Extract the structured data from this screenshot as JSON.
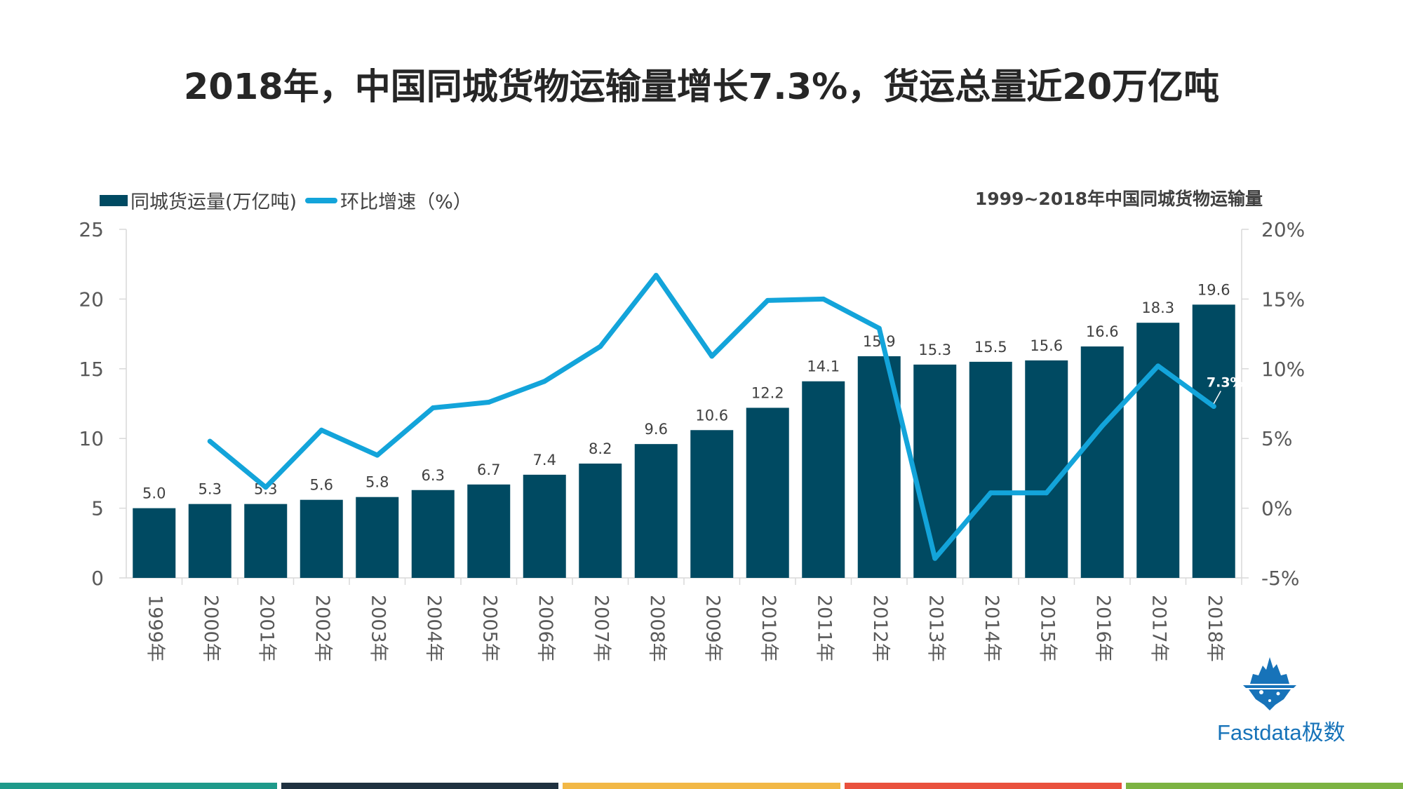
{
  "title": "2018年，中国同城货物运输量增长7.3%，货运总量近20万亿吨",
  "subtitle": "1999~2018年中国同城货物运输量",
  "logo_text": "Fastdata极数",
  "colors": {
    "bar": "#004A62",
    "line": "#13A4DA",
    "stripes": [
      "#1E9A8A",
      "#1F3140",
      "#F2B846",
      "#E9513D",
      "#7CB342"
    ]
  },
  "chart_data": {
    "type": "bar",
    "categories": [
      "1999年",
      "2000年",
      "2001年",
      "2002年",
      "2003年",
      "2004年",
      "2005年",
      "2006年",
      "2007年",
      "2008年",
      "2009年",
      "2010年",
      "2011年",
      "2012年",
      "2013年",
      "2014年",
      "2015年",
      "2016年",
      "2017年",
      "2018年"
    ],
    "series": [
      {
        "name": "同城货运量(万亿吨)",
        "type": "bar",
        "axis": "left",
        "values": [
          5.0,
          5.3,
          5.3,
          5.6,
          5.8,
          6.3,
          6.7,
          7.4,
          8.2,
          9.6,
          10.6,
          12.2,
          14.1,
          15.9,
          15.3,
          15.5,
          15.6,
          16.6,
          18.3,
          19.6
        ],
        "labels": [
          "5.0",
          "5.3",
          "5.3",
          "5.6",
          "5.8",
          "6.3",
          "6.7",
          "7.4",
          "8.2",
          "9.6",
          "10.6",
          "12.2",
          "14.1",
          "15.9",
          "15.3",
          "15.5",
          "15.6",
          "16.6",
          "18.3",
          "19.6"
        ]
      },
      {
        "name": "环比增速（%）",
        "type": "line",
        "axis": "right",
        "values": [
          null,
          4.8,
          1.5,
          5.6,
          3.8,
          7.2,
          7.6,
          9.1,
          11.6,
          16.7,
          10.9,
          14.9,
          15.0,
          12.9,
          -3.6,
          1.1,
          1.1,
          5.9,
          10.2,
          7.3
        ]
      }
    ],
    "annotation": {
      "index": 19,
      "text": "7.3%"
    },
    "y_left": {
      "range": [
        0,
        25
      ],
      "ticks": [
        0,
        5,
        10,
        15,
        20,
        25
      ],
      "tick_labels": [
        "0",
        "5",
        "10",
        "15",
        "20",
        "25"
      ]
    },
    "y_right": {
      "range": [
        -5,
        20
      ],
      "ticks": [
        -5,
        0,
        5,
        10,
        15,
        20
      ],
      "tick_labels": [
        "-5%",
        "0%",
        "5%",
        "10%",
        "15%",
        "20%"
      ]
    },
    "legend": [
      "同城货运量(万亿吨)",
      "环比增速（%）"
    ],
    "legend_position": "top-left"
  }
}
